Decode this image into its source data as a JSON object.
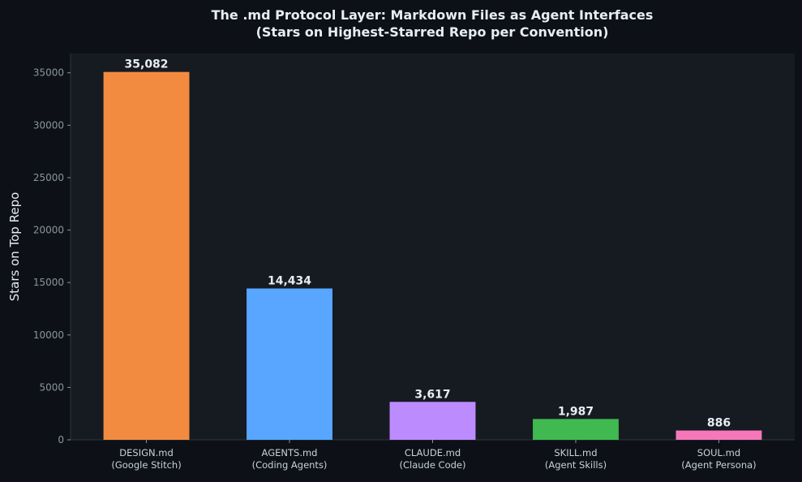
{
  "chart_data": {
    "type": "bar",
    "title": "The .md Protocol Layer: Markdown Files as Agent Interfaces",
    "subtitle": "(Stars on Highest-Starred Repo per Convention)",
    "xlabel": "",
    "ylabel": "Stars on Top Repo",
    "ylim": [
      0,
      36836
    ],
    "yticks": [
      0,
      5000,
      10000,
      15000,
      20000,
      25000,
      30000,
      35000
    ],
    "grid": false,
    "categories": [
      [
        "DESIGN.md",
        "(Google Stitch)"
      ],
      [
        "AGENTS.md",
        "(Coding Agents)"
      ],
      [
        "CLAUDE.md",
        "(Claude Code)"
      ],
      [
        "SKILL.md",
        "(Agent Skills)"
      ],
      [
        "SOUL.md",
        "(Agent Persona)"
      ]
    ],
    "values": [
      35082,
      14434,
      3617,
      1987,
      886
    ],
    "data_labels": [
      "35,082",
      "14,434",
      "3,617",
      "1,987",
      "886"
    ],
    "colors": [
      "#f28b3f",
      "#58a6ff",
      "#bc8cff",
      "#3fb950",
      "#f778ba"
    ],
    "background": "#0d1117",
    "plot_background": "#161b22"
  }
}
